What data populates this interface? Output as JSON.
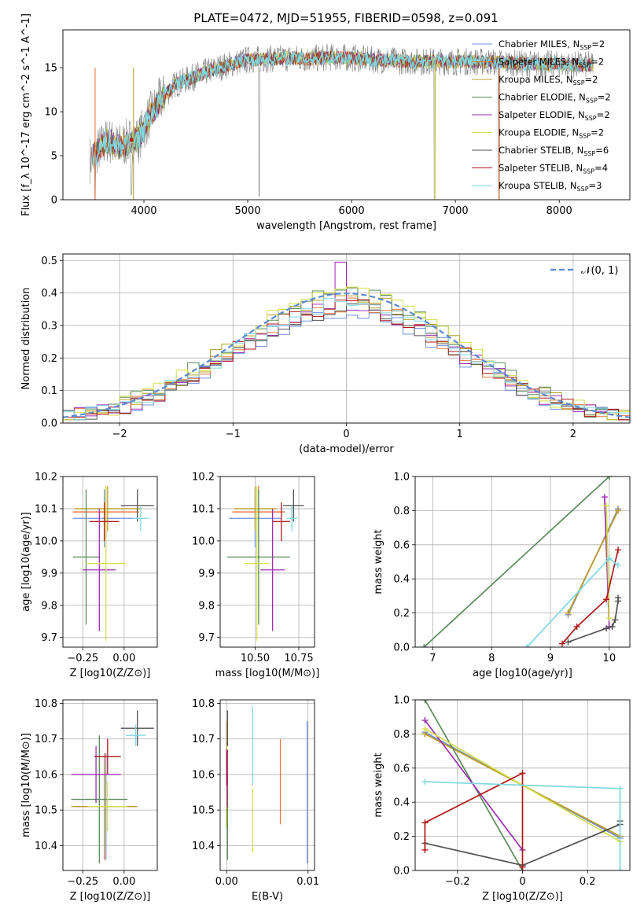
{
  "figure_title": "PLATE=0472, MJD=51955, FIBERID=0598, z=0.091",
  "models": [
    {
      "name": "Chabrier MILES, N_SSP=2",
      "color": "#6f8fe0"
    },
    {
      "name": "Salpeter MILES, N_SSP=2",
      "color": "#e8783a"
    },
    {
      "name": "Kroupa MILES, N_SSP=2",
      "color": "#b8a02a"
    },
    {
      "name": "Chabrier ELODIE, N_SSP=2",
      "color": "#5a8a5a"
    },
    {
      "name": "Salpeter ELODIE, N_SSP=2",
      "color": "#9a2fb0"
    },
    {
      "name": "Kroupa ELODIE, N_SSP=2",
      "color": "#d4e04a"
    },
    {
      "name": "Chabrier STELIB, N_SSP=6",
      "color": "#505050"
    },
    {
      "name": "Salpeter STELIB, N_SSP=4",
      "color": "#b01818"
    },
    {
      "name": "Kroupa STELIB, N_SSP=3",
      "color": "#7fd8e0"
    }
  ],
  "chart_data": [
    {
      "id": "spectrum",
      "type": "line",
      "xlabel": "wavelength [Angstrom, rest frame]",
      "ylabel": "Flux [f_λ 10^-17 erg cm^-2 s^-1 A^-1]",
      "xlim": [
        3220,
        8680
      ],
      "ylim": [
        0,
        19.3
      ],
      "xticks": [
        4000,
        5000,
        6000,
        7000,
        8000
      ],
      "yticks": [
        0,
        5,
        10,
        15
      ],
      "data_color": "#808080",
      "model_color": "#7fd8e0",
      "continuum": {
        "x": [
          3480,
          3550,
          3650,
          3750,
          3850,
          3950,
          4050,
          4150,
          4300,
          4450,
          4600,
          4800,
          5000,
          5200,
          5400,
          5600,
          5800,
          6000,
          6200,
          6400,
          6600,
          6800,
          7000,
          7200,
          7400,
          7600,
          7800,
          8000,
          8200,
          8330
        ],
        "y": [
          4.5,
          5.5,
          6.8,
          6.0,
          6.6,
          6.9,
          9.4,
          11.2,
          13.1,
          13.8,
          14.5,
          15.3,
          15.9,
          16.0,
          16.1,
          16.0,
          16.2,
          16.1,
          15.9,
          15.8,
          15.7,
          15.7,
          15.7,
          15.7,
          15.6,
          15.5,
          15.4,
          15.4,
          15.3,
          15.3
        ]
      },
      "dips": [
        {
          "x": 3530,
          "y": 0
        },
        {
          "x": 3880,
          "y": 0.6
        },
        {
          "x": 5110,
          "y": 0.4
        },
        {
          "x": 6800,
          "y": 0
        },
        {
          "x": 7420,
          "y": 0
        }
      ]
    },
    {
      "id": "residual_histogram",
      "type": "histogram",
      "xlabel": "(data-model)/error",
      "ylabel": "Normed distribution",
      "xlim": [
        -2.5,
        2.5
      ],
      "ylim": [
        0,
        0.52
      ],
      "xticks": [
        -2,
        -1,
        0,
        1,
        2
      ],
      "yticks": [
        0,
        0.1,
        0.2,
        0.3,
        0.4,
        0.5
      ],
      "bins": 50,
      "legend": "𝒩(0, 1)",
      "gauss_color": "#5b8ad6",
      "peaks": [
        0.34,
        0.36,
        0.39,
        0.4,
        0.36,
        0.4,
        0.35,
        0.36,
        0.37
      ]
    },
    {
      "id": "age_vs_Z",
      "type": "errorbar",
      "xlabel": "Z [log10(Z/Z⊙)]",
      "ylabel": "age [log10(age/yr)]",
      "xlim": [
        -0.37,
        0.2
      ],
      "ylim": [
        9.67,
        10.2
      ],
      "xticks": [
        -0.25,
        0.0
      ],
      "yticks": [
        9.7,
        9.8,
        9.9,
        10.0,
        10.1,
        10.2
      ],
      "points": [
        {
          "x": -0.12,
          "y": 10.07,
          "xerr": 0.19,
          "yerr": 0.09
        },
        {
          "x": -0.11,
          "y": 10.09,
          "xerr": 0.2,
          "yerr": 0.08
        },
        {
          "x": -0.1,
          "y": 10.1,
          "xerr": 0.2,
          "yerr": 0.07
        },
        {
          "x": -0.23,
          "y": 9.95,
          "xerr": 0.08,
          "yerr": 0.21
        },
        {
          "x": -0.15,
          "y": 9.91,
          "xerr": 0.1,
          "yerr": 0.19
        },
        {
          "x": -0.11,
          "y": 9.93,
          "xerr": 0.12,
          "yerr": 0.24
        },
        {
          "x": 0.08,
          "y": 10.11,
          "xerr": 0.1,
          "yerr": 0.05
        },
        {
          "x": -0.12,
          "y": 10.06,
          "xerr": 0.09,
          "yerr": 0.06
        },
        {
          "x": 0.1,
          "y": 10.07,
          "xerr": 0.05,
          "yerr": 0.04
        }
      ]
    },
    {
      "id": "age_vs_mass",
      "type": "errorbar",
      "xlabel": "mass [log10(M/M⊙)]",
      "ylabel": "",
      "xlim": [
        10.3,
        10.84
      ],
      "ylim": [
        9.67,
        10.2
      ],
      "xticks": [
        10.5,
        10.75
      ],
      "yticks": [
        9.7,
        9.8,
        9.9,
        10.0,
        10.1,
        10.2
      ],
      "points": [
        {
          "x": 10.5,
          "y": 10.07,
          "xerr": 0.15,
          "yerr": 0.09
        },
        {
          "x": 10.52,
          "y": 10.09,
          "xerr": 0.15,
          "yerr": 0.08
        },
        {
          "x": 10.5,
          "y": 10.1,
          "xerr": 0.12,
          "yerr": 0.07
        },
        {
          "x": 10.52,
          "y": 9.95,
          "xerr": 0.18,
          "yerr": 0.21
        },
        {
          "x": 10.6,
          "y": 9.91,
          "xerr": 0.07,
          "yerr": 0.19
        },
        {
          "x": 10.51,
          "y": 9.93,
          "xerr": 0.07,
          "yerr": 0.24
        },
        {
          "x": 10.72,
          "y": 10.11,
          "xerr": 0.06,
          "yerr": 0.05
        },
        {
          "x": 10.65,
          "y": 10.06,
          "xerr": 0.05,
          "yerr": 0.06
        },
        {
          "x": 10.71,
          "y": 10.07,
          "xerr": 0.03,
          "yerr": 0.04
        }
      ]
    },
    {
      "id": "mass_vs_Z",
      "type": "errorbar",
      "xlabel": "Z [log10(Z/Z⊙)]",
      "ylabel": "mass [log10(M/M⊙)]",
      "xlim": [
        -0.37,
        0.2
      ],
      "ylim": [
        10.33,
        10.81
      ],
      "xticks": [
        -0.25,
        0.0
      ],
      "yticks": [
        10.4,
        10.5,
        10.6,
        10.7,
        10.8
      ],
      "points": [
        {
          "x": -0.11,
          "y": 10.51,
          "xerr": 0.19,
          "yerr": 0.15
        },
        {
          "x": -0.12,
          "y": 10.51,
          "xerr": 0.19,
          "yerr": 0.15
        },
        {
          "x": -0.12,
          "y": 10.51,
          "xerr": 0.2,
          "yerr": 0.12
        },
        {
          "x": -0.15,
          "y": 10.53,
          "xerr": 0.17,
          "yerr": 0.18
        },
        {
          "x": -0.17,
          "y": 10.6,
          "xerr": 0.15,
          "yerr": 0.08
        },
        {
          "x": -0.1,
          "y": 10.51,
          "xerr": 0.12,
          "yerr": 0.07
        },
        {
          "x": 0.08,
          "y": 10.73,
          "xerr": 0.1,
          "yerr": 0.05
        },
        {
          "x": -0.1,
          "y": 10.65,
          "xerr": 0.08,
          "yerr": 0.05
        },
        {
          "x": 0.07,
          "y": 10.71,
          "xerr": 0.06,
          "yerr": 0.03
        }
      ]
    },
    {
      "id": "mass_vs_EBV",
      "type": "errorbar",
      "xlabel": "E(B-V)",
      "ylabel": "",
      "xlim": [
        -0.0008,
        0.0108
      ],
      "ylim": [
        10.33,
        10.81
      ],
      "xticks": [
        0.0,
        0.01
      ],
      "yticks": [
        10.4,
        10.5,
        10.6,
        10.7,
        10.8
      ],
      "points": [
        {
          "x": 0.0099,
          "y": 10.55,
          "xerr": 0,
          "yerr": 0.2
        },
        {
          "x": 0.0066,
          "y": 10.58,
          "xerr": 0,
          "yerr": 0.12
        },
        {
          "x": 0.0,
          "y": 10.6,
          "xerr": 0,
          "yerr": 0.15
        },
        {
          "x": 0.0001,
          "y": 10.48,
          "xerr": 0,
          "yerr": 0.12
        },
        {
          "x": 0.0001,
          "y": 10.59,
          "xerr": 0,
          "yerr": 0.08
        },
        {
          "x": 0.0032,
          "y": 10.47,
          "xerr": 0,
          "yerr": 0.09
        },
        {
          "x": 0.0001,
          "y": 10.73,
          "xerr": 0,
          "yerr": 0.05
        },
        {
          "x": 0.0,
          "y": 10.62,
          "xerr": 0,
          "yerr": 0.05
        },
        {
          "x": 0.0032,
          "y": 10.68,
          "xerr": 0,
          "yerr": 0.11
        }
      ]
    },
    {
      "id": "weight_vs_age",
      "type": "line",
      "xlabel": "age [log10(age/yr)]",
      "ylabel": "mass weight",
      "xlim": [
        6.7,
        10.35
      ],
      "ylim": [
        0,
        1
      ],
      "xticks": [
        7,
        8,
        9,
        10
      ],
      "yticks": [
        0,
        0.2,
        0.4,
        0.6,
        0.8,
        1.0
      ],
      "series": [
        {
          "x": [
            9.3,
            10.15
          ],
          "y": [
            0.19,
            0.81
          ]
        },
        {
          "x": [
            9.3,
            10.15
          ],
          "y": [
            0.2,
            0.8
          ]
        },
        {
          "x": [
            9.3,
            10.15
          ],
          "y": [
            0.2,
            0.8
          ]
        },
        {
          "x": [
            6.85,
            10.0
          ],
          "y": [
            0.0,
            1.0
          ]
        },
        {
          "x": [
            10.0,
            9.92
          ],
          "y": [
            0.12,
            0.88
          ]
        },
        {
          "x": [
            10.0,
            9.95
          ],
          "y": [
            0.17,
            0.83
          ]
        },
        {
          "x": [
            9.3,
            9.95,
            10.05,
            10.1,
            10.15,
            10.15
          ],
          "y": [
            0.03,
            0.11,
            0.12,
            0.16,
            0.27,
            0.29
          ]
        },
        {
          "x": [
            9.2,
            9.45,
            9.95,
            10.15
          ],
          "y": [
            0.02,
            0.12,
            0.28,
            0.57
          ]
        },
        {
          "x": [
            8.6,
            10.0,
            10.15
          ],
          "y": [
            0.0,
            0.52,
            0.48
          ]
        }
      ]
    },
    {
      "id": "weight_vs_Z",
      "type": "line",
      "xlabel": "Z [log10(Z/Z⊙)]",
      "ylabel": "mass weight",
      "xlim": [
        -0.33,
        0.33
      ],
      "ylim": [
        0,
        1
      ],
      "xticks": [
        -0.2,
        0.0,
        0.2
      ],
      "yticks": [
        0,
        0.2,
        0.4,
        0.6,
        0.8,
        1.0
      ],
      "series": [
        {
          "x": [
            -0.3,
            0.3
          ],
          "y": [
            0.81,
            0.19
          ]
        },
        {
          "x": [
            -0.3,
            0.3
          ],
          "y": [
            0.8,
            0.2
          ]
        },
        {
          "x": [
            -0.3,
            0.3
          ],
          "y": [
            0.8,
            0.2
          ]
        },
        {
          "x": [
            -0.3,
            0.0
          ],
          "y": [
            1.0,
            0.0
          ]
        },
        {
          "x": [
            -0.3,
            0.0
          ],
          "y": [
            0.88,
            0.12
          ]
        },
        {
          "x": [
            -0.3,
            0.3
          ],
          "y": [
            0.83,
            0.17
          ]
        },
        {
          "x": [
            -0.3,
            0.0,
            0.3,
            0.3
          ],
          "y": [
            0.16,
            0.03,
            0.27,
            0.29
          ]
        },
        {
          "x": [
            -0.3,
            -0.3,
            0.0,
            0.0
          ],
          "y": [
            0.12,
            0.28,
            0.57,
            0.02
          ]
        },
        {
          "x": [
            -0.3,
            0.3,
            0.3
          ],
          "y": [
            0.52,
            0.48,
            0.0
          ]
        }
      ]
    }
  ]
}
